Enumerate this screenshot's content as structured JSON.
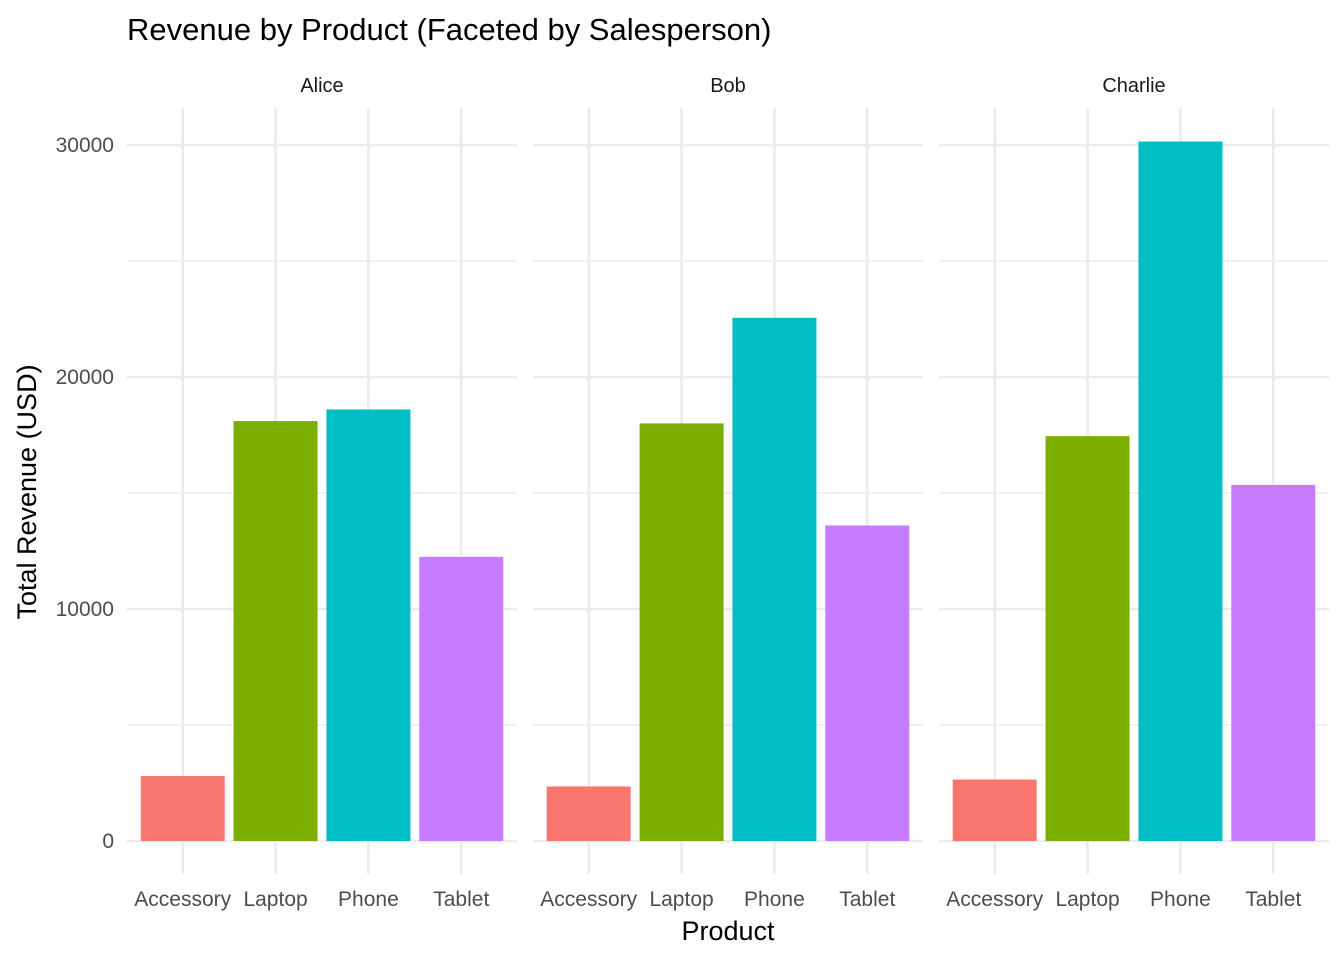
{
  "chart_data": {
    "type": "bar",
    "title": "Revenue by Product (Faceted by Salesperson)",
    "xlabel": "Product",
    "ylabel": "Total Revenue (USD)",
    "categories": [
      "Accessory",
      "Laptop",
      "Phone",
      "Tablet"
    ],
    "facets": [
      {
        "name": "Alice",
        "values": [
          2800,
          18100,
          18600,
          12250
        ]
      },
      {
        "name": "Bob",
        "values": [
          2350,
          18000,
          22550,
          13600
        ]
      },
      {
        "name": "Charlie",
        "values": [
          2650,
          17450,
          30150,
          15350
        ]
      }
    ],
    "yticks": [
      0,
      10000,
      20000,
      30000
    ],
    "yticks_labels": [
      "0",
      "10000",
      "20000",
      "30000"
    ],
    "ylim": [
      0,
      31500
    ],
    "grid": true,
    "legend": "none",
    "colors": {
      "Accessory": "#F8766D",
      "Laptop": "#7CAE00",
      "Phone": "#00BFC4",
      "Tablet": "#C77CFF",
      "grid": "#EBEBEB"
    }
  }
}
